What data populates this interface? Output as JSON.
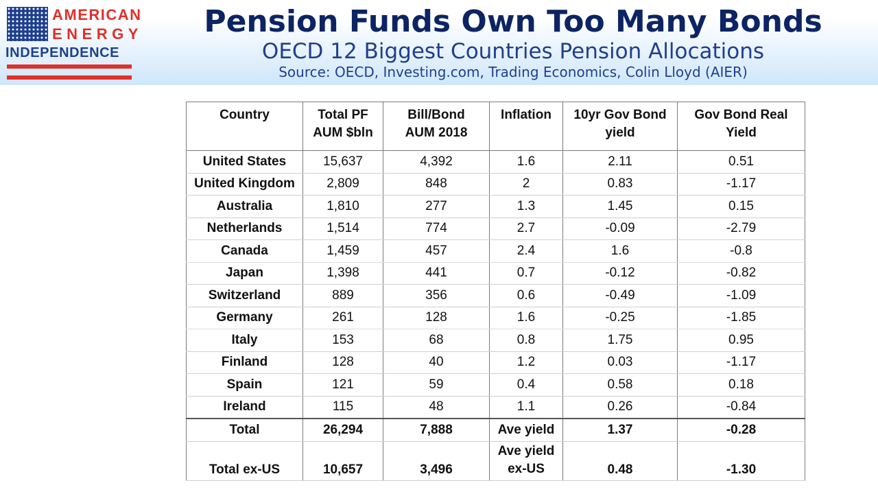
{
  "logo": {
    "line1": "AMERICAN",
    "line2": "ENERGY",
    "line3": "INDEPENDENCE"
  },
  "header": {
    "title": "Pension Funds Own Too Many Bonds",
    "subtitle": "OECD 12 Biggest Countries Pension Allocations",
    "source": "Source: OECD, Investing.com, Trading Economics, Colin Lloyd (AIER)"
  },
  "table": {
    "headers": [
      {
        "l1": "Country",
        "l2": ""
      },
      {
        "l1": "Total PF",
        "l2": "AUM $bln"
      },
      {
        "l1": "Bill/Bond",
        "l2": "AUM 2018"
      },
      {
        "l1": "Inflation",
        "l2": ""
      },
      {
        "l1": "10yr Gov Bond",
        "l2": "yield"
      },
      {
        "l1": "Gov Bond Real",
        "l2": "Yield"
      }
    ],
    "rows": [
      [
        "United States",
        "15,637",
        "4,392",
        "1.6",
        "2.11",
        "0.51"
      ],
      [
        "United Kingdom",
        "2,809",
        "848",
        "2",
        "0.83",
        "-1.17"
      ],
      [
        "Australia",
        "1,810",
        "277",
        "1.3",
        "1.45",
        "0.15"
      ],
      [
        "Netherlands",
        "1,514",
        "774",
        "2.7",
        "-0.09",
        "-2.79"
      ],
      [
        "Canada",
        "1,459",
        "457",
        "2.4",
        "1.6",
        "-0.8"
      ],
      [
        "Japan",
        "1,398",
        "441",
        "0.7",
        "-0.12",
        "-0.82"
      ],
      [
        "Switzerland",
        "889",
        "356",
        "0.6",
        "-0.49",
        "-1.09"
      ],
      [
        "Germany",
        "261",
        "128",
        "1.6",
        "-0.25",
        "-1.85"
      ],
      [
        "Italy",
        "153",
        "68",
        "0.8",
        "1.75",
        "0.95"
      ],
      [
        "Finland",
        "128",
        "40",
        "1.2",
        "0.03",
        "-1.17"
      ],
      [
        "Spain",
        "121",
        "59",
        "0.4",
        "0.58",
        "0.18"
      ],
      [
        "Ireland",
        "115",
        "48",
        "1.1",
        "0.26",
        "-0.84"
      ]
    ],
    "total": [
      "Total",
      "26,294",
      "7,888",
      "Ave yield",
      "1.37",
      "-0.28"
    ],
    "total_ex_us": {
      "label": "Total ex-US",
      "aum": "10,657",
      "bonds": "3,496",
      "infl_l1": "Ave yield",
      "infl_l2": "ex-US",
      "yield": "0.48",
      "real": "-1.30"
    }
  },
  "colors": {
    "title": "#0d2463",
    "accent_red": "#e0302a",
    "accent_blue": "#1f3f8f"
  }
}
